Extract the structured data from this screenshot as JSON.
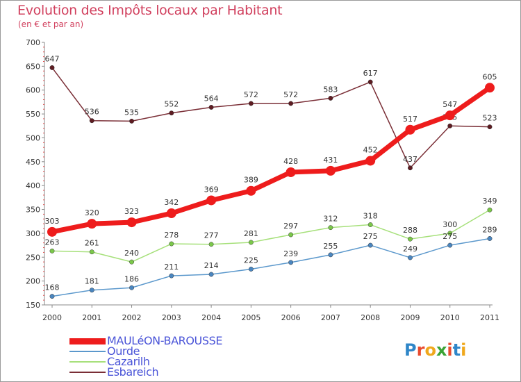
{
  "title": "Evolution des Impôts locaux par Habitant",
  "subtitle": "(en € et par an)",
  "logo": {
    "text": "Proxiti",
    "letters": [
      "P",
      "r",
      "o",
      "x",
      "i",
      "t",
      "i"
    ],
    "colors": [
      "#2f86c8",
      "#e94b2e",
      "#f0a81c",
      "#3aa335",
      "#e94b2e",
      "#2f86c8",
      "#f0a81c"
    ]
  },
  "chart_data": {
    "type": "line",
    "title": "Evolution des Impôts locaux par Habitant",
    "subtitle": "(en € et par an)",
    "xlabel": "",
    "ylabel": "",
    "categories": [
      "2000",
      "2001",
      "2002",
      "2003",
      "2004",
      "2005",
      "2006",
      "2007",
      "2008",
      "2009",
      "2010",
      "2011"
    ],
    "ylim": [
      150,
      700
    ],
    "yticks": [
      150,
      200,
      250,
      300,
      350,
      400,
      450,
      500,
      550,
      600,
      650,
      700
    ],
    "grid": false,
    "legend_position": "bottom-left",
    "series": [
      {
        "name": "Esbareich",
        "color": "#7a2e36",
        "marker": "#5e1c22",
        "values": [
          647,
          536,
          535,
          552,
          564,
          572,
          572,
          583,
          617,
          437,
          525,
          523
        ]
      },
      {
        "name": "Cazarilh",
        "color": "#a6e07a",
        "marker": "#7bc84a",
        "values": [
          263,
          261,
          240,
          278,
          277,
          281,
          297,
          312,
          318,
          288,
          300,
          349
        ]
      },
      {
        "name": "Ourde",
        "color": "#5b98cc",
        "marker": "#4a86c0",
        "values": [
          168,
          181,
          186,
          211,
          214,
          225,
          239,
          255,
          275,
          249,
          275,
          289
        ]
      },
      {
        "name": "MAULéON-BAROUSSE",
        "color": "#ee1c1c",
        "marker": "#ee1c1c",
        "values": [
          303,
          320,
          323,
          342,
          369,
          389,
          428,
          431,
          452,
          517,
          547,
          605
        ]
      }
    ],
    "legend_order": [
      "MAULéON-BAROUSSE",
      "Ourde",
      "Cazarilh",
      "Esbareich"
    ]
  }
}
